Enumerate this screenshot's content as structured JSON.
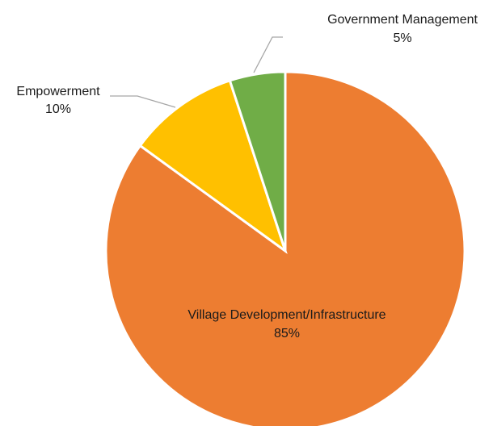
{
  "chart_data": {
    "type": "pie",
    "title": "",
    "start_angle_deg": 0,
    "direction": "clockwise",
    "slices": [
      {
        "name": "Village Development/Infrastructure",
        "value": 85,
        "value_label": "85%",
        "color": "#ED7D31",
        "label_placement": "inside"
      },
      {
        "name": "Empowerment",
        "value": 10,
        "value_label": "10%",
        "color": "#FFC000",
        "label_placement": "outside"
      },
      {
        "name": "Government Management",
        "value": 5,
        "value_label": "5%",
        "color": "#70AD47",
        "label_placement": "outside"
      }
    ]
  }
}
